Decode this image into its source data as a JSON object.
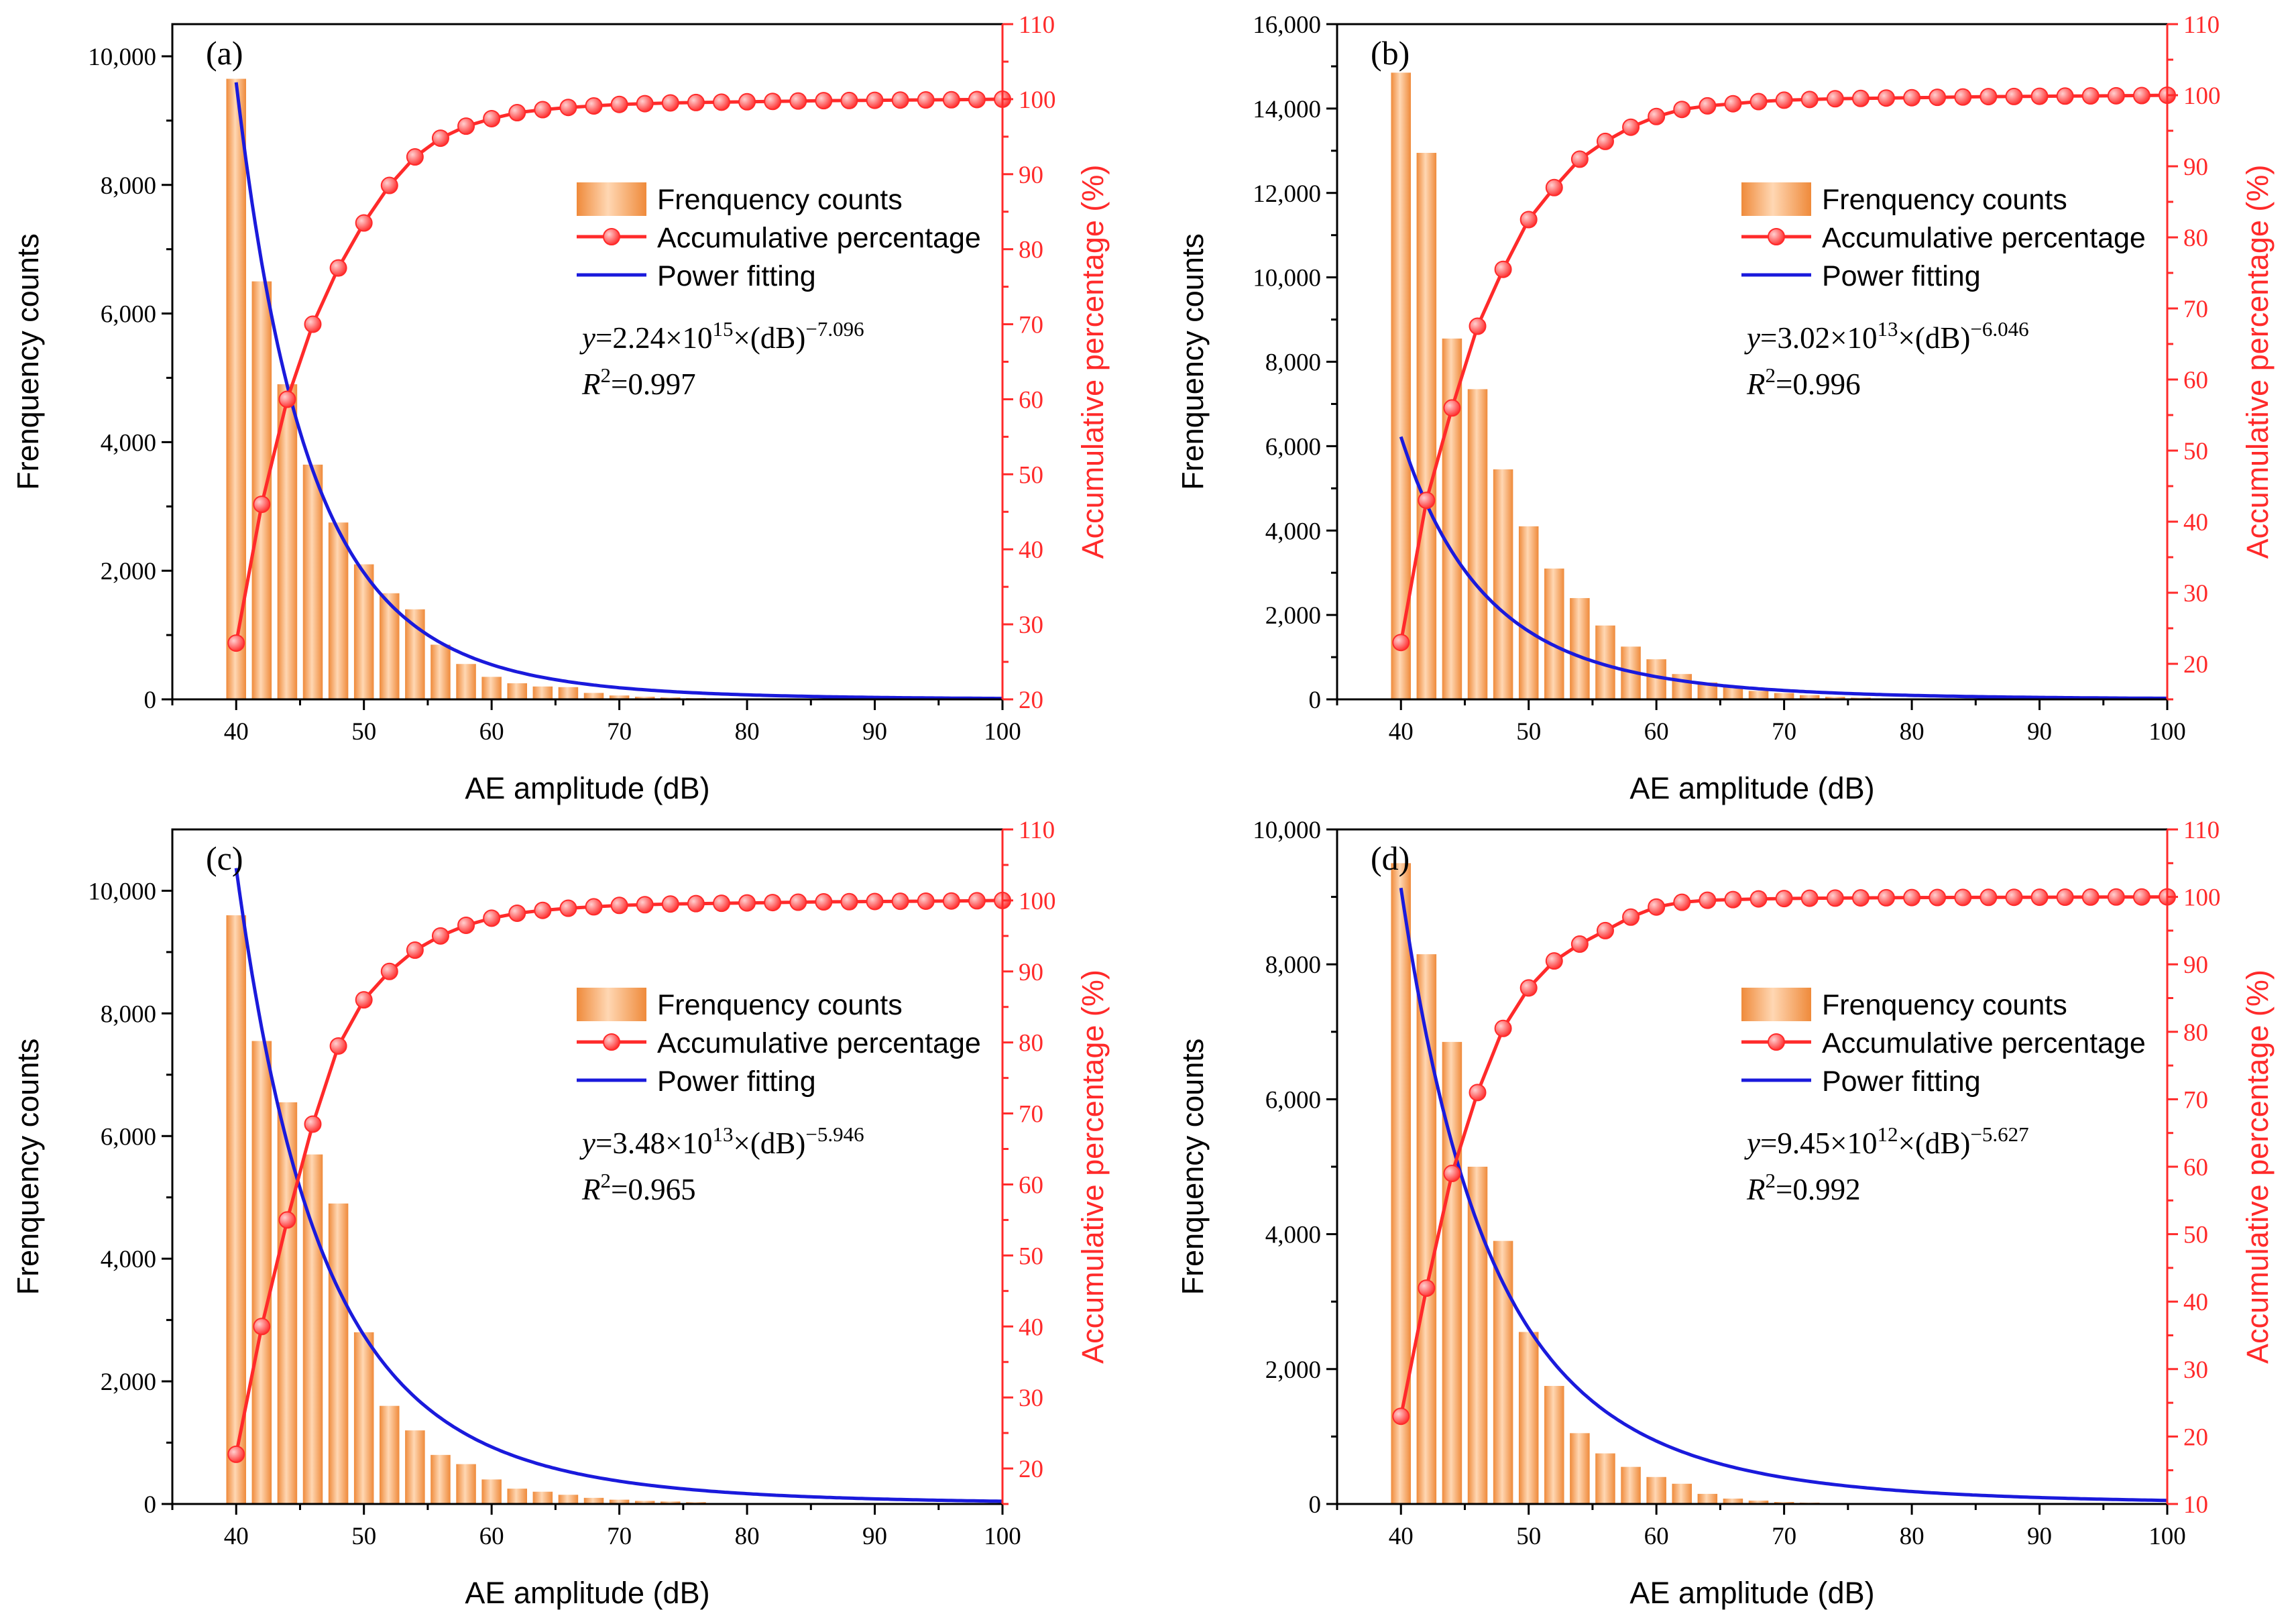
{
  "colors": {
    "bar": "#f5a05a",
    "bar_light": "#ffd7b3",
    "bar_dark": "#ef8a3a",
    "accum": "#ff2a2a",
    "fit": "#1a1adc",
    "axis": "#000000"
  },
  "legend_labels": {
    "bars": "Frenquency counts",
    "accum": "Accumulative percentage",
    "fit": "Power fitting"
  },
  "chart_data": [
    {
      "id": "a",
      "type": "bar",
      "panel_label": "(a)",
      "xlabel": "AE amplitude (dB)",
      "ylabel": "Frenquency counts",
      "y2label": "Accumulative percentage (%)",
      "xlim": [
        35,
        100
      ],
      "xticks": [
        40,
        50,
        60,
        70,
        80,
        90,
        100
      ],
      "ylim": [
        0,
        10500
      ],
      "yticks": [
        0,
        2000,
        4000,
        6000,
        8000,
        10000
      ],
      "ytick_labels": [
        "0",
        "2,000",
        "4,000",
        "6,000",
        "8,000",
        "10,000"
      ],
      "y2lim": [
        20,
        110
      ],
      "y2ticks": [
        20,
        30,
        40,
        50,
        60,
        70,
        80,
        90,
        100,
        110
      ],
      "bar_x": [
        40,
        42,
        44,
        46,
        48,
        50,
        52,
        54,
        56,
        58,
        60,
        62,
        64,
        66,
        68,
        70,
        72,
        74,
        76
      ],
      "bar_values": [
        9650,
        6500,
        4900,
        3650,
        2750,
        2100,
        1650,
        1400,
        850,
        550,
        350,
        250,
        200,
        190,
        100,
        60,
        40,
        30,
        20
      ],
      "accum_x": [
        40,
        42,
        44,
        46,
        48,
        50,
        52,
        54,
        56,
        58,
        60,
        62,
        64,
        66,
        68,
        70,
        72,
        74,
        76,
        78,
        80,
        82,
        84,
        86,
        88,
        90,
        92,
        94,
        96,
        98,
        100
      ],
      "accum_values": [
        27.5,
        46,
        60,
        70,
        77.5,
        83.5,
        88.5,
        92.3,
        94.8,
        96.4,
        97.4,
        98.2,
        98.6,
        98.9,
        99.1,
        99.3,
        99.4,
        99.5,
        99.55,
        99.6,
        99.65,
        99.7,
        99.75,
        99.8,
        99.82,
        99.85,
        99.88,
        99.9,
        99.92,
        99.95,
        100
      ],
      "fit": {
        "a": 2240000000000000.0,
        "b": -7.096,
        "x_range": [
          40,
          100
        ]
      },
      "equation": {
        "prefix": "y",
        "eq": "=2.24×10",
        "exp": "15",
        "mid": "×(dB)",
        "pow": "−7.096"
      },
      "r2": {
        "prefix": "R",
        "sup": "2",
        "value": "=0.997"
      }
    },
    {
      "id": "b",
      "type": "bar",
      "panel_label": "(b)",
      "xlabel": "AE amplitude (dB)",
      "ylabel": "Frenquency counts",
      "y2label": "Accumulative percentage (%)",
      "xlim": [
        35,
        100
      ],
      "xticks": [
        40,
        50,
        60,
        70,
        80,
        90,
        100
      ],
      "ylim": [
        0,
        16000
      ],
      "yticks": [
        0,
        2000,
        4000,
        6000,
        8000,
        10000,
        12000,
        14000,
        16000
      ],
      "ytick_labels": [
        "0",
        "2,000",
        "4,000",
        "6,000",
        "8,000",
        "10,000",
        "12,000",
        "14,000",
        "16,000"
      ],
      "y2lim": [
        15,
        110
      ],
      "y2ticks": [
        20,
        30,
        40,
        50,
        60,
        70,
        80,
        90,
        100,
        110
      ],
      "bar_x": [
        40,
        42,
        44,
        46,
        48,
        50,
        52,
        54,
        56,
        58,
        60,
        62,
        64,
        66,
        68,
        70,
        72,
        74,
        76,
        78
      ],
      "bar_values": [
        14850,
        12950,
        8550,
        7350,
        5450,
        4100,
        3100,
        2400,
        1750,
        1250,
        950,
        600,
        400,
        300,
        200,
        150,
        100,
        60,
        40,
        20
      ],
      "accum_x": [
        40,
        42,
        44,
        46,
        48,
        50,
        52,
        54,
        56,
        58,
        60,
        62,
        64,
        66,
        68,
        70,
        72,
        74,
        76,
        78,
        80,
        82,
        84,
        86,
        88,
        90,
        92,
        94,
        96,
        98,
        100
      ],
      "accum_values": [
        23,
        43,
        56,
        67.5,
        75.5,
        82.5,
        87,
        91,
        93.5,
        95.5,
        97,
        98,
        98.5,
        98.8,
        99.1,
        99.3,
        99.4,
        99.5,
        99.55,
        99.6,
        99.65,
        99.7,
        99.75,
        99.8,
        99.82,
        99.85,
        99.88,
        99.9,
        99.92,
        99.95,
        100
      ],
      "fit": {
        "a": 30200000000000.0,
        "b": -6.046,
        "x_range": [
          40,
          100
        ]
      },
      "equation": {
        "prefix": "y",
        "eq": "=3.02×10",
        "exp": "13",
        "mid": "×(dB)",
        "pow": "−6.046"
      },
      "r2": {
        "prefix": "R",
        "sup": "2",
        "value": "=0.996"
      }
    },
    {
      "id": "c",
      "type": "bar",
      "panel_label": "(c)",
      "xlabel": "AE amplitude (dB)",
      "ylabel": "Frenquency counts",
      "y2label": "Accumulative percentage (%)",
      "xlim": [
        35,
        100
      ],
      "xticks": [
        40,
        50,
        60,
        70,
        80,
        90,
        100
      ],
      "ylim": [
        0,
        11000
      ],
      "yticks": [
        0,
        2000,
        4000,
        6000,
        8000,
        10000
      ],
      "ytick_labels": [
        "0",
        "2,000",
        "4,000",
        "6,000",
        "8,000",
        "10,000"
      ],
      "y2lim": [
        15,
        110
      ],
      "y2ticks": [
        20,
        30,
        40,
        50,
        60,
        70,
        80,
        90,
        100,
        110
      ],
      "bar_x": [
        40,
        42,
        44,
        46,
        48,
        50,
        52,
        54,
        56,
        58,
        60,
        62,
        64,
        66,
        68,
        70,
        72,
        74,
        76
      ],
      "bar_values": [
        9600,
        7550,
        6550,
        5700,
        4900,
        2800,
        1600,
        1200,
        800,
        650,
        400,
        250,
        200,
        150,
        100,
        70,
        50,
        40,
        30
      ],
      "accum_x": [
        40,
        42,
        44,
        46,
        48,
        50,
        52,
        54,
        56,
        58,
        60,
        62,
        64,
        66,
        68,
        70,
        72,
        74,
        76,
        78,
        80,
        82,
        84,
        86,
        88,
        90,
        92,
        94,
        96,
        98,
        100
      ],
      "accum_values": [
        22,
        40,
        55,
        68.5,
        79.5,
        86,
        90,
        93,
        95,
        96.5,
        97.5,
        98.2,
        98.6,
        98.9,
        99.1,
        99.3,
        99.4,
        99.5,
        99.55,
        99.6,
        99.65,
        99.7,
        99.75,
        99.8,
        99.82,
        99.85,
        99.88,
        99.9,
        99.92,
        99.95,
        100
      ],
      "fit": {
        "a": 34800000000000.0,
        "b": -5.946,
        "x_range": [
          40,
          100
        ]
      },
      "equation": {
        "prefix": "y",
        "eq": "=3.48×10",
        "exp": "13",
        "mid": "×(dB)",
        "pow": "−5.946"
      },
      "r2": {
        "prefix": "R",
        "sup": "2",
        "value": "=0.965"
      }
    },
    {
      "id": "d",
      "type": "bar",
      "panel_label": "(d)",
      "xlabel": "AE amplitude (dB)",
      "ylabel": "Frenquency counts",
      "y2label": "Accumulative percentage (%)",
      "xlim": [
        35,
        100
      ],
      "xticks": [
        40,
        50,
        60,
        70,
        80,
        90,
        100
      ],
      "ylim": [
        0,
        10000
      ],
      "yticks": [
        0,
        2000,
        4000,
        6000,
        8000,
        10000
      ],
      "ytick_labels": [
        "0",
        "2,000",
        "4,000",
        "6,000",
        "8,000",
        "10,000"
      ],
      "y2lim": [
        10,
        110
      ],
      "y2ticks": [
        10,
        20,
        30,
        40,
        50,
        60,
        70,
        80,
        90,
        100,
        110
      ],
      "bar_x": [
        40,
        42,
        44,
        46,
        48,
        50,
        52,
        54,
        56,
        58,
        60,
        62,
        64,
        66,
        68,
        70,
        72,
        74
      ],
      "bar_values": [
        9500,
        8150,
        6850,
        5000,
        3900,
        2550,
        1750,
        1050,
        750,
        550,
        400,
        300,
        150,
        80,
        50,
        30,
        20,
        10
      ],
      "accum_x": [
        40,
        42,
        44,
        46,
        48,
        50,
        52,
        54,
        56,
        58,
        60,
        62,
        64,
        66,
        68,
        70,
        72,
        74,
        76,
        78,
        80,
        82,
        84,
        86,
        88,
        90,
        92,
        94,
        96,
        98,
        100
      ],
      "accum_values": [
        23,
        42,
        59,
        71,
        80.5,
        86.5,
        90.5,
        93,
        95,
        97,
        98.5,
        99.2,
        99.5,
        99.6,
        99.7,
        99.75,
        99.8,
        99.82,
        99.85,
        99.87,
        99.9,
        99.91,
        99.92,
        99.93,
        99.94,
        99.95,
        99.96,
        99.97,
        99.98,
        99.99,
        100
      ],
      "fit": {
        "a": 9450000000000.0,
        "b": -5.627,
        "x_range": [
          40,
          100
        ]
      },
      "equation": {
        "prefix": "y",
        "eq": "=9.45×10",
        "exp": "12",
        "mid": "×(dB)",
        "pow": "−5.627"
      },
      "r2": {
        "prefix": "R",
        "sup": "2",
        "value": "=0.992"
      }
    }
  ]
}
